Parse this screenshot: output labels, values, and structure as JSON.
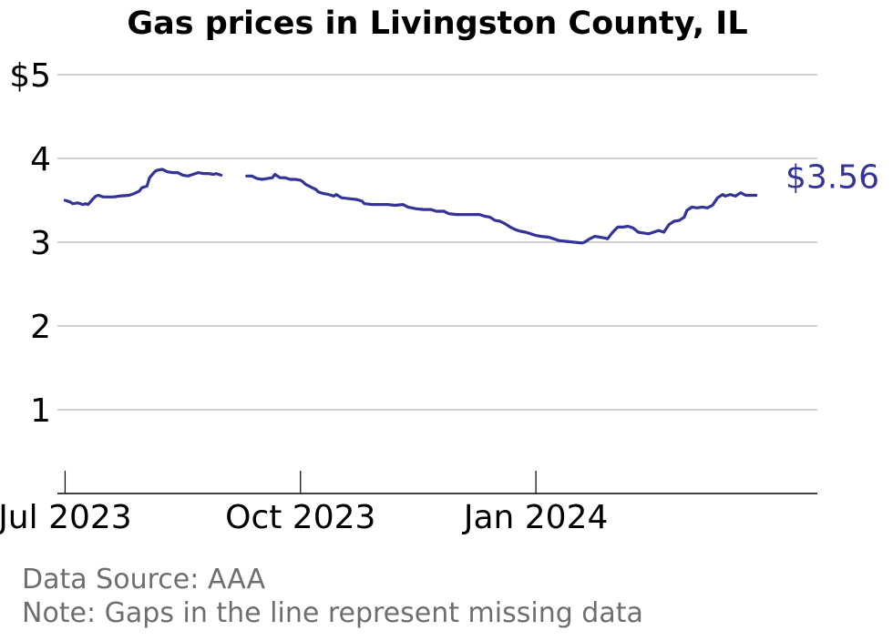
{
  "chart_data": {
    "type": "line",
    "title": "Gas prices in Livingston County, IL",
    "ylim": [
      0,
      5
    ],
    "xlim": [
      "2023-06-28",
      "2024-04-20"
    ],
    "yticks": [
      {
        "value": 1,
        "label": "1"
      },
      {
        "value": 2,
        "label": "2"
      },
      {
        "value": 3,
        "label": "3"
      },
      {
        "value": 4,
        "label": "4"
      },
      {
        "value": 5,
        "label": "$5"
      }
    ],
    "xticks": [
      {
        "date": "2023-07-01",
        "label": "Jul 2023"
      },
      {
        "date": "2023-10-01",
        "label": "Oct 2023"
      },
      {
        "date": "2024-01-01",
        "label": "Jan 2024"
      }
    ],
    "grid": true,
    "line_color": "#33339a",
    "end_label": "$3.56",
    "series": [
      {
        "segments": [
          [
            [
              "2023-07-01",
              3.5
            ],
            [
              "2023-07-03",
              3.48
            ],
            [
              "2023-07-04",
              3.46
            ],
            [
              "2023-07-06",
              3.47
            ],
            [
              "2023-07-08",
              3.45
            ],
            [
              "2023-07-09",
              3.46
            ],
            [
              "2023-07-10",
              3.45
            ],
            [
              "2023-07-12",
              3.52
            ],
            [
              "2023-07-13",
              3.55
            ],
            [
              "2023-07-14",
              3.56
            ],
            [
              "2023-07-16",
              3.54
            ],
            [
              "2023-07-20",
              3.54
            ],
            [
              "2023-07-22",
              3.55
            ],
            [
              "2023-07-26",
              3.56
            ],
            [
              "2023-07-28",
              3.58
            ],
            [
              "2023-07-30",
              3.61
            ],
            [
              "2023-07-31",
              3.65
            ],
            [
              "2023-08-02",
              3.67
            ],
            [
              "2023-08-03",
              3.77
            ],
            [
              "2023-08-05",
              3.84
            ],
            [
              "2023-08-06",
              3.86
            ],
            [
              "2023-08-08",
              3.87
            ],
            [
              "2023-08-10",
              3.84
            ],
            [
              "2023-08-12",
              3.83
            ],
            [
              "2023-08-14",
              3.83
            ],
            [
              "2023-08-16",
              3.8
            ],
            [
              "2023-08-18",
              3.79
            ],
            [
              "2023-08-20",
              3.81
            ],
            [
              "2023-08-22",
              3.83
            ],
            [
              "2023-08-24",
              3.82
            ],
            [
              "2023-08-26",
              3.82
            ],
            [
              "2023-08-28",
              3.81
            ],
            [
              "2023-08-29",
              3.82
            ],
            [
              "2023-08-31",
              3.8
            ]
          ],
          [
            [
              "2023-09-10",
              3.79
            ],
            [
              "2023-09-12",
              3.79
            ],
            [
              "2023-09-14",
              3.76
            ],
            [
              "2023-09-16",
              3.75
            ],
            [
              "2023-09-18",
              3.76
            ],
            [
              "2023-09-20",
              3.77
            ],
            [
              "2023-09-21",
              3.81
            ],
            [
              "2023-09-23",
              3.77
            ],
            [
              "2023-09-25",
              3.77
            ],
            [
              "2023-09-27",
              3.75
            ],
            [
              "2023-09-29",
              3.75
            ],
            [
              "2023-10-01",
              3.74
            ],
            [
              "2023-10-02",
              3.72
            ],
            [
              "2023-10-03",
              3.69
            ],
            [
              "2023-10-05",
              3.66
            ],
            [
              "2023-10-07",
              3.63
            ],
            [
              "2023-10-08",
              3.6
            ],
            [
              "2023-10-10",
              3.58
            ],
            [
              "2023-10-12",
              3.57
            ],
            [
              "2023-10-14",
              3.55
            ],
            [
              "2023-10-15",
              3.57
            ],
            [
              "2023-10-17",
              3.53
            ],
            [
              "2023-10-20",
              3.52
            ],
            [
              "2023-10-23",
              3.51
            ],
            [
              "2023-10-25",
              3.49
            ],
            [
              "2023-10-26",
              3.46
            ],
            [
              "2023-10-29",
              3.45
            ],
            [
              "2023-11-01",
              3.45
            ],
            [
              "2023-11-04",
              3.45
            ],
            [
              "2023-11-07",
              3.44
            ],
            [
              "2023-11-10",
              3.45
            ],
            [
              "2023-11-12",
              3.42
            ],
            [
              "2023-11-15",
              3.4
            ],
            [
              "2023-11-18",
              3.39
            ],
            [
              "2023-11-21",
              3.39
            ],
            [
              "2023-11-23",
              3.37
            ],
            [
              "2023-11-26",
              3.37
            ],
            [
              "2023-11-28",
              3.34
            ],
            [
              "2023-12-01",
              3.33
            ],
            [
              "2023-12-04",
              3.33
            ],
            [
              "2023-12-07",
              3.33
            ],
            [
              "2023-12-10",
              3.33
            ],
            [
              "2023-12-12",
              3.31
            ],
            [
              "2023-12-14",
              3.3
            ],
            [
              "2023-12-16",
              3.26
            ],
            [
              "2023-12-18",
              3.25
            ],
            [
              "2023-12-20",
              3.22
            ],
            [
              "2023-12-22",
              3.18
            ],
            [
              "2023-12-24",
              3.15
            ],
            [
              "2023-12-26",
              3.13
            ],
            [
              "2023-12-28",
              3.12
            ],
            [
              "2023-12-30",
              3.1
            ],
            [
              "2024-01-01",
              3.08
            ],
            [
              "2024-01-03",
              3.07
            ],
            [
              "2024-01-06",
              3.06
            ],
            [
              "2024-01-08",
              3.04
            ],
            [
              "2024-01-10",
              3.02
            ],
            [
              "2024-01-13",
              3.01
            ],
            [
              "2024-01-16",
              3.0
            ],
            [
              "2024-01-19",
              2.99
            ],
            [
              "2024-01-20",
              3.0
            ],
            [
              "2024-01-22",
              3.04
            ],
            [
              "2024-01-24",
              3.07
            ],
            [
              "2024-01-26",
              3.06
            ],
            [
              "2024-01-28",
              3.05
            ],
            [
              "2024-01-29",
              3.04
            ],
            [
              "2024-01-31",
              3.12
            ],
            [
              "2024-02-02",
              3.18
            ],
            [
              "2024-02-04",
              3.18
            ],
            [
              "2024-02-06",
              3.19
            ],
            [
              "2024-02-08",
              3.17
            ],
            [
              "2024-02-10",
              3.12
            ],
            [
              "2024-02-12",
              3.11
            ],
            [
              "2024-02-14",
              3.1
            ],
            [
              "2024-02-16",
              3.12
            ],
            [
              "2024-02-18",
              3.14
            ],
            [
              "2024-02-20",
              3.12
            ],
            [
              "2024-02-22",
              3.21
            ],
            [
              "2024-02-24",
              3.25
            ],
            [
              "2024-02-26",
              3.26
            ],
            [
              "2024-02-28",
              3.3
            ],
            [
              "2024-02-29",
              3.38
            ],
            [
              "2024-03-02",
              3.42
            ],
            [
              "2024-03-04",
              3.41
            ],
            [
              "2024-03-06",
              3.42
            ],
            [
              "2024-03-08",
              3.41
            ],
            [
              "2024-03-10",
              3.44
            ],
            [
              "2024-03-12",
              3.53
            ],
            [
              "2024-03-14",
              3.57
            ],
            [
              "2024-03-15",
              3.55
            ],
            [
              "2024-03-17",
              3.57
            ],
            [
              "2024-03-19",
              3.55
            ],
            [
              "2024-03-21",
              3.59
            ],
            [
              "2024-03-23",
              3.56
            ],
            [
              "2024-03-25",
              3.56
            ],
            [
              "2024-03-27",
              3.56
            ]
          ]
        ]
      }
    ]
  },
  "footer": {
    "source": "Data Source: AAA",
    "note": "Note: Gaps in the line represent missing data"
  }
}
